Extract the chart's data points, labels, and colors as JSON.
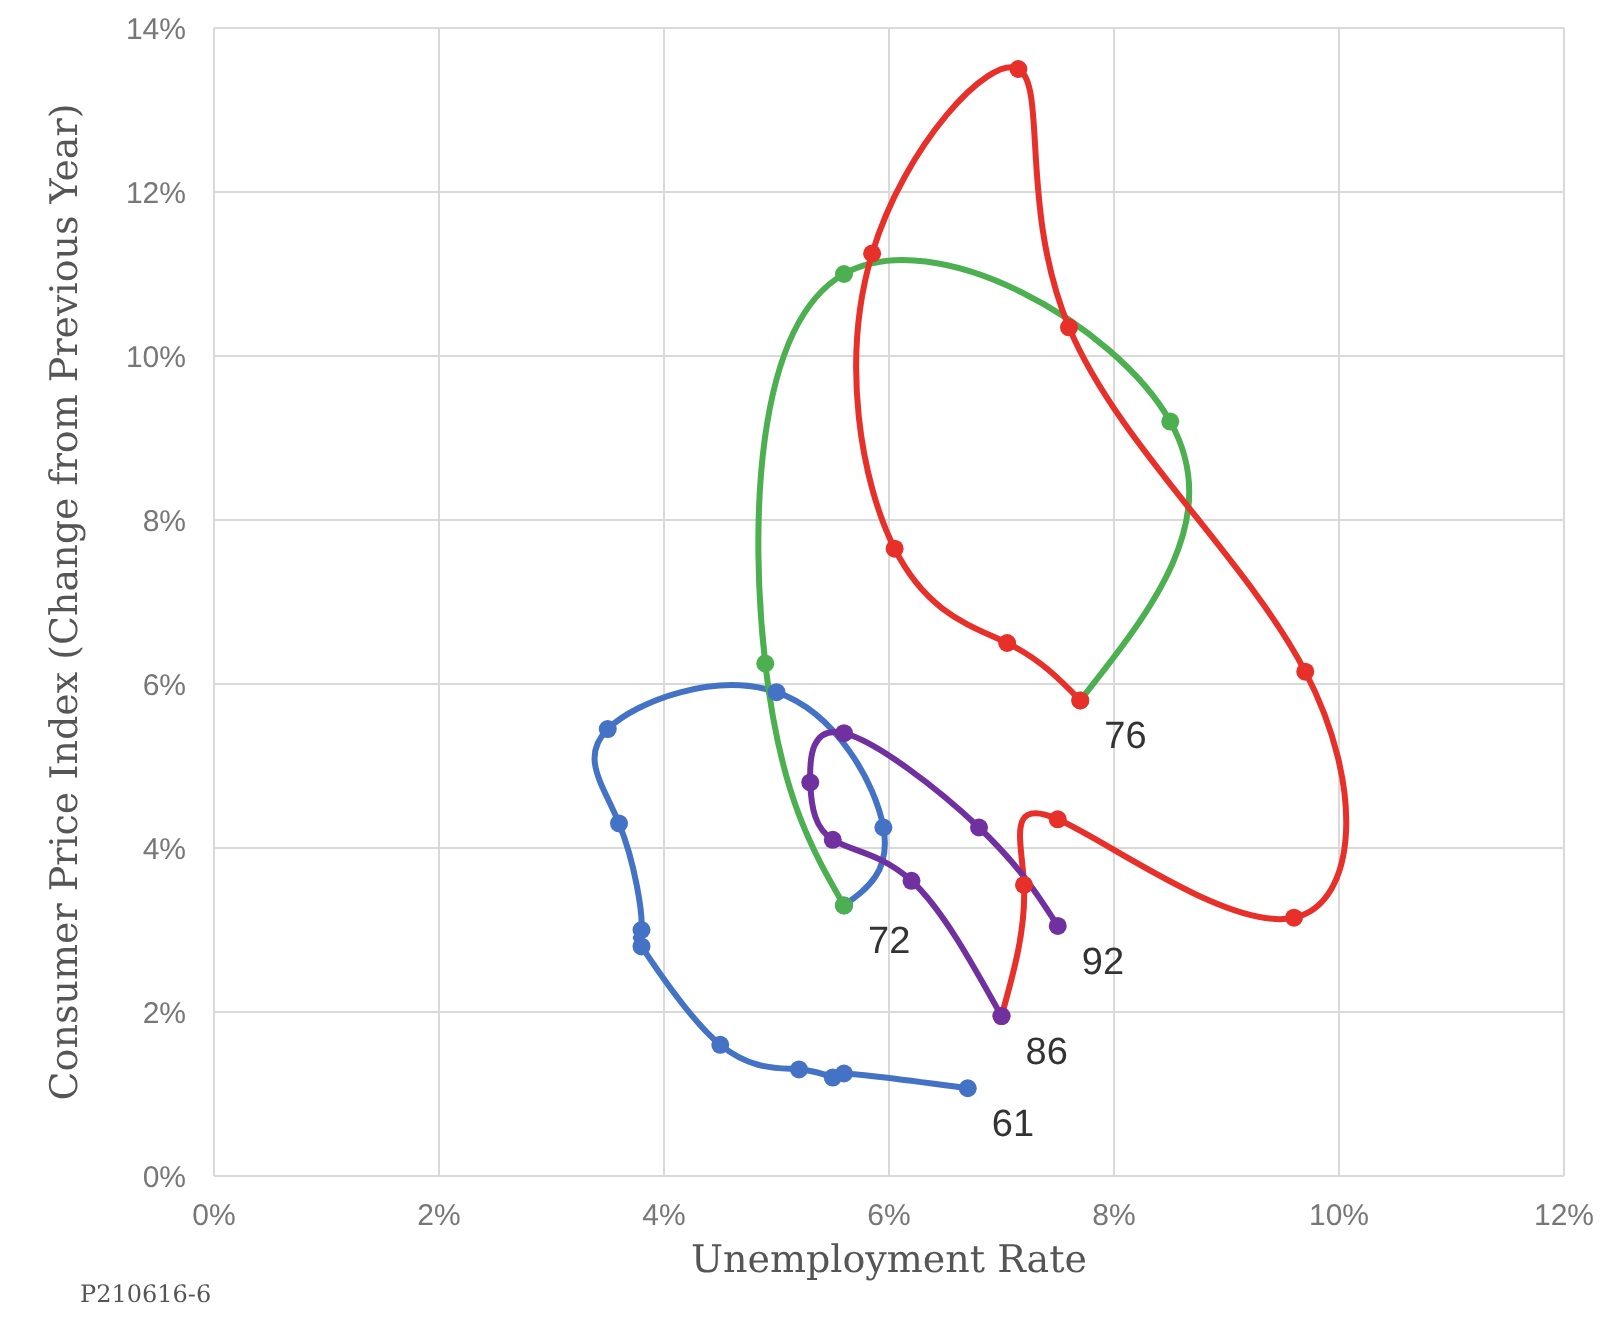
{
  "chart_data": {
    "type": "line",
    "xlabel": "Unemployment Rate",
    "ylabel": "Consumer Price Index (Change from Previous Year)",
    "series": [
      {
        "color": "#4472c4",
        "x": [
          6.7,
          5.6,
          5.5,
          5.2,
          4.5,
          3.8,
          3.8,
          3.6,
          3.5,
          5.0,
          5.95,
          5.6
        ],
        "values": [
          1.07,
          1.25,
          1.2,
          1.3,
          1.6,
          2.8,
          3.0,
          4.3,
          5.45,
          5.9,
          4.25,
          3.3
        ]
      },
      {
        "color": "#4caf50",
        "x": [
          5.6,
          4.9,
          5.6,
          8.5,
          7.7
        ],
        "values": [
          3.3,
          6.25,
          11.0,
          9.2,
          5.8
        ]
      },
      {
        "color": "#e8302a",
        "x": [
          7.7,
          7.05,
          6.05,
          5.85,
          7.15,
          7.6,
          9.7,
          9.6,
          7.5,
          7.2,
          7.0
        ],
        "values": [
          5.8,
          6.5,
          7.65,
          11.25,
          13.5,
          10.35,
          6.15,
          3.15,
          4.35,
          3.55,
          1.95
        ]
      },
      {
        "color": "#7030a0",
        "x": [
          7.0,
          6.2,
          5.5,
          5.3,
          5.6,
          6.8,
          7.5
        ],
        "values": [
          1.95,
          3.6,
          4.1,
          4.8,
          5.4,
          4.25,
          3.05
        ]
      }
    ],
    "xlim": [
      0,
      12
    ],
    "xticks": [
      {
        "value": 0,
        "label": "0%"
      },
      {
        "value": 2,
        "label": "2%"
      },
      {
        "value": 4,
        "label": "4%"
      },
      {
        "value": 6,
        "label": "6%"
      },
      {
        "value": 8,
        "label": "8%"
      },
      {
        "value": 10,
        "label": "10%"
      },
      {
        "value": 12,
        "label": "12%"
      }
    ],
    "ylim": [
      0,
      14
    ],
    "yticks": [
      {
        "value": 0,
        "label": "0%"
      },
      {
        "value": 2,
        "label": "2%"
      },
      {
        "value": 4,
        "label": "4%"
      },
      {
        "value": 6,
        "label": "6%"
      },
      {
        "value": 8,
        "label": "8%"
      },
      {
        "value": 10,
        "label": "10%"
      },
      {
        "value": 12,
        "label": "12%"
      },
      {
        "value": 14,
        "label": "14%"
      }
    ],
    "grid": true,
    "marker": "circle",
    "line_style": "solid",
    "annotations": [
      {
        "text": "61",
        "x": 6.7,
        "y": 1.07
      },
      {
        "text": "72",
        "x": 5.6,
        "y": 3.3
      },
      {
        "text": "76",
        "x": 7.7,
        "y": 5.8
      },
      {
        "text": "86",
        "x": 7.0,
        "y": 1.95
      },
      {
        "text": "92",
        "x": 7.5,
        "y": 3.05
      },
      "P210616-6"
    ]
  }
}
